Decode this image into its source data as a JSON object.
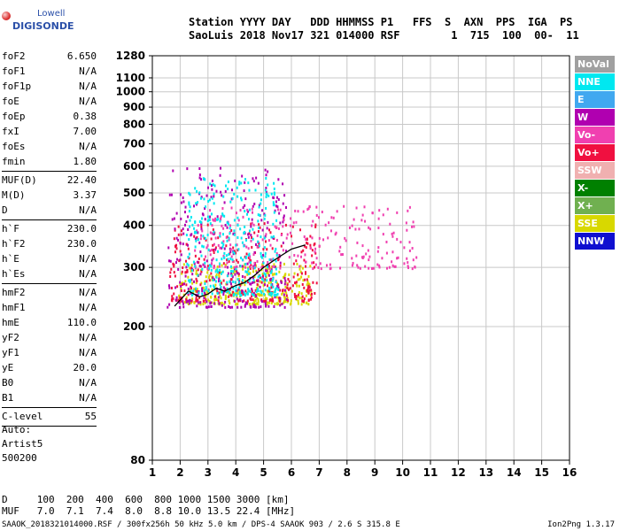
{
  "logo": {
    "brand_top": "Lowell",
    "brand_main": "DIGISONDE"
  },
  "header": {
    "line1": "Station YYYY DAY   DDD HHMMSS P1   FFS  S  AXN  PPS  IGA  PS",
    "line2": "SaoLuis 2018 Nov17 321 014000 RSF        1  715  100  00-  11"
  },
  "parameters": [
    {
      "group": [
        {
          "k": "foF2",
          "v": "6.650"
        },
        {
          "k": "foF1",
          "v": "N/A"
        },
        {
          "k": "foF1p",
          "v": "N/A"
        },
        {
          "k": "foE",
          "v": "N/A"
        },
        {
          "k": "foEp",
          "v": "0.38"
        },
        {
          "k": "fxI",
          "v": "7.00"
        },
        {
          "k": "foEs",
          "v": "N/A"
        },
        {
          "k": "fmin",
          "v": "1.80"
        }
      ]
    },
    {
      "group": [
        {
          "k": "MUF(D)",
          "v": "22.40"
        },
        {
          "k": "M(D)",
          "v": "3.37"
        },
        {
          "k": "D",
          "v": "N/A"
        }
      ]
    },
    {
      "group": [
        {
          "k": "h`F",
          "v": "230.0"
        },
        {
          "k": "h`F2",
          "v": "230.0"
        },
        {
          "k": "h`E",
          "v": "N/A"
        },
        {
          "k": "h`Es",
          "v": "N/A"
        }
      ]
    },
    {
      "group": [
        {
          "k": "hmF2",
          "v": "N/A"
        },
        {
          "k": "hmF1",
          "v": "N/A"
        },
        {
          "k": "hmE",
          "v": "110.0"
        },
        {
          "k": "yF2",
          "v": "N/A"
        },
        {
          "k": "yF1",
          "v": "N/A"
        },
        {
          "k": "yE",
          "v": "20.0"
        },
        {
          "k": "B0",
          "v": "N/A"
        },
        {
          "k": "B1",
          "v": "N/A"
        }
      ]
    },
    {
      "group": [
        {
          "k": "C-level",
          "v": "55"
        }
      ]
    }
  ],
  "autoscaling": {
    "line1": "Auto:",
    "line2": "Artist5",
    "line3": "500200"
  },
  "legend": [
    {
      "label": "NoVal",
      "color": "#a0a0a0"
    },
    {
      "label": "NNE",
      "color": "#00e8f0"
    },
    {
      "label": "E",
      "color": "#40a8f0"
    },
    {
      "label": "W",
      "color": "#b000b0"
    },
    {
      "label": "Vo-",
      "color": "#f040b0"
    },
    {
      "label": "Vo+",
      "color": "#f01040"
    },
    {
      "label": "SSW",
      "color": "#f0b0b0"
    },
    {
      "label": "X-",
      "color": "#008000"
    },
    {
      "label": "X+",
      "color": "#70b050"
    },
    {
      "label": "SSE",
      "color": "#d8d800"
    },
    {
      "label": "NNW",
      "color": "#1010d0"
    }
  ],
  "bottom_table": {
    "line1": "D     100  200  400  600  800 1000 1500 3000 [km]",
    "line2": "MUF   7.0  7.1  7.4  8.0  8.8 10.0 13.5 22.4 [MHz]"
  },
  "footer": "SAAOK_2018321014000.RSF / 300fx256h 50 kHz 5.0 km / DPS-4 SAAOK 903 / 2.6 S 315.8 E",
  "version": "Ion2Png 1.3.17",
  "chart_data": {
    "type": "scatter",
    "title": "",
    "xlabel": "",
    "ylabel": "",
    "xlim": [
      1,
      16
    ],
    "ylim": [
      80,
      1280
    ],
    "y_scale": "log",
    "x_ticks": [
      1,
      2,
      3,
      4,
      5,
      6,
      7,
      8,
      9,
      10,
      11,
      12,
      13,
      14,
      15,
      16
    ],
    "y_ticks": [
      80,
      200,
      300,
      400,
      500,
      600,
      700,
      800,
      900,
      1000,
      1100,
      1280
    ],
    "grid": true,
    "trace_series": [
      {
        "name": "O-trace (F2)",
        "color": "#000000",
        "x": [
          1.8,
          2.0,
          2.3,
          2.7,
          3.0,
          3.3,
          3.6,
          4.0,
          4.3,
          4.7,
          5.0,
          5.5,
          6.0,
          6.5
        ],
        "y": [
          230,
          240,
          255,
          245,
          250,
          260,
          255,
          265,
          270,
          285,
          300,
          320,
          340,
          350
        ]
      }
    ],
    "echo_clusters": [
      {
        "series": "SSE",
        "x_range": [
          1.9,
          6.7
        ],
        "y_range": [
          235,
          310
        ]
      },
      {
        "series": "Vo+",
        "x_range": [
          1.6,
          7.0
        ],
        "y_range": [
          240,
          420
        ]
      },
      {
        "series": "W",
        "x_range": [
          1.5,
          5.8
        ],
        "y_range": [
          230,
          600
        ]
      },
      {
        "series": "Vo-",
        "x_range": [
          2.5,
          10.5
        ],
        "y_range": [
          300,
          460
        ]
      },
      {
        "series": "NNE",
        "x_range": [
          2.2,
          5.5
        ],
        "y_range": [
          250,
          560
        ]
      }
    ]
  }
}
